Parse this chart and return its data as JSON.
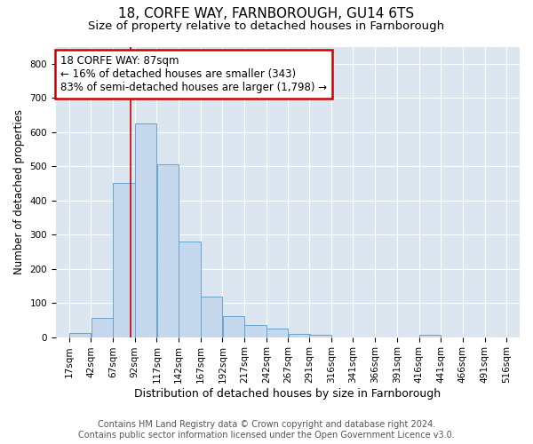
{
  "title1": "18, CORFE WAY, FARNBOROUGH, GU14 6TS",
  "title2": "Size of property relative to detached houses in Farnborough",
  "xlabel": "Distribution of detached houses by size in Farnborough",
  "ylabel": "Number of detached properties",
  "footer1": "Contains HM Land Registry data © Crown copyright and database right 2024.",
  "footer2": "Contains public sector information licensed under the Open Government Licence v3.0.",
  "annotation_line1": "18 CORFE WAY: 87sqm",
  "annotation_line2": "← 16% of detached houses are smaller (343)",
  "annotation_line3": "83% of semi-detached houses are larger (1,798) →",
  "bar_color": "#c5d8ee",
  "bar_edge_color": "#6aa3cc",
  "bg_color": "#dce6f0",
  "grid_color": "#ffffff",
  "vline_color": "#cc0000",
  "vline_x": 87,
  "bin_edges": [
    17,
    42,
    67,
    92,
    117,
    142,
    167,
    192,
    217,
    242,
    267,
    291,
    316,
    341,
    366,
    391,
    416,
    441,
    466,
    491,
    516
  ],
  "bar_heights": [
    13,
    55,
    450,
    625,
    505,
    280,
    118,
    62,
    35,
    25,
    10,
    8,
    0,
    0,
    0,
    0,
    8,
    0,
    0,
    0
  ],
  "ylim": [
    0,
    850
  ],
  "yticks": [
    0,
    100,
    200,
    300,
    400,
    500,
    600,
    700,
    800
  ],
  "annotation_box_color": "#cc0000",
  "title1_fontsize": 11,
  "title2_fontsize": 9.5,
  "xlabel_fontsize": 9,
  "ylabel_fontsize": 8.5,
  "tick_fontsize": 7.5,
  "footer_fontsize": 7,
  "ann_fontsize": 8.5
}
